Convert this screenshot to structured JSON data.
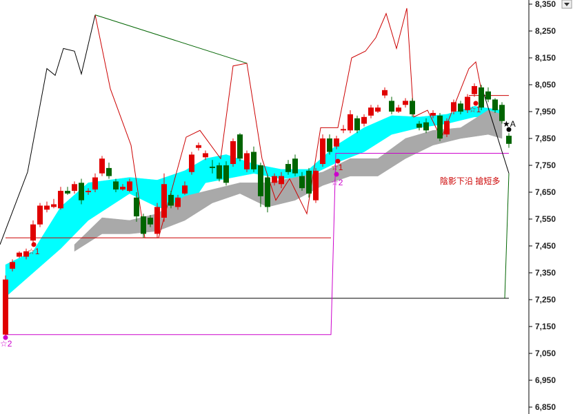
{
  "chart_data": {
    "type": "candlestick",
    "ylim": [
      6850,
      8350
    ],
    "yticks": [
      {
        "value": 6850,
        "label": "6,850"
      },
      {
        "value": 6950,
        "label": "6,950"
      },
      {
        "value": 7050,
        "label": "7,050"
      },
      {
        "value": 7150,
        "label": "7,150"
      },
      {
        "value": 7250,
        "label": "7,250"
      },
      {
        "value": 7350,
        "label": "7,350"
      },
      {
        "value": 7450,
        "label": "7,450"
      },
      {
        "value": 7550,
        "label": "7,550"
      },
      {
        "value": 7650,
        "label": "7,650"
      },
      {
        "value": 7750,
        "label": "7,750"
      },
      {
        "value": 7850,
        "label": "7,850"
      },
      {
        "value": 7950,
        "label": "7,950"
      },
      {
        "value": 8050,
        "label": "8,050"
      },
      {
        "value": 8150,
        "label": "8,150"
      },
      {
        "value": 8250,
        "label": "8,250"
      },
      {
        "value": 8350,
        "label": "8,350"
      }
    ],
    "up_color": "#e00000",
    "down_color": "#006400",
    "open": [
      7120,
      7365,
      7410,
      7410,
      7470,
      7530,
      7585,
      7595,
      7590,
      7655,
      7655,
      7685,
      7650,
      7660,
      7720,
      7740,
      7690,
      7660,
      7655,
      7630,
      7560,
      7555,
      7495,
      7555,
      7640,
      7595,
      7645,
      7725,
      7815,
      7780,
      7745,
      7750,
      7750,
      7755,
      7865,
      7735,
      7800,
      7750,
      7705,
      7685,
      7680,
      7755,
      7775,
      7710,
      7730,
      7620,
      7755,
      7850,
      7820,
      7880,
      7880,
      7925,
      7905,
      7935,
      7950,
      8010,
      7990,
      7950,
      7975,
      7990,
      7905,
      7910,
      7935,
      7935,
      7865,
      7950,
      7980,
      7955,
      8015,
      8040,
      8025,
      7995,
      7975,
      7860
    ],
    "close": [
      7325,
      7390,
      7425,
      7430,
      7530,
      7600,
      7600,
      7605,
      7655,
      7645,
      7680,
      7620,
      7655,
      7705,
      7775,
      7710,
      7660,
      7670,
      7690,
      7560,
      7495,
      7530,
      7595,
      7680,
      7600,
      7630,
      7675,
      7790,
      7825,
      7795,
      7740,
      7700,
      7685,
      7840,
      7775,
      7795,
      7735,
      7635,
      7595,
      7710,
      7710,
      7725,
      7720,
      7665,
      7645,
      7730,
      7850,
      7800,
      7850,
      7885,
      7940,
      7880,
      7930,
      7965,
      7965,
      8030,
      7950,
      7965,
      7990,
      7940,
      7890,
      7880,
      7945,
      7850,
      7915,
      7985,
      7950,
      8005,
      8045,
      7965,
      7995,
      7955,
      7915,
      7830
    ],
    "high": [
      7340,
      7400,
      7430,
      7440,
      7545,
      7610,
      7615,
      7625,
      7670,
      7670,
      7690,
      7700,
      7665,
      7720,
      7785,
      7760,
      7700,
      7680,
      7700,
      7650,
      7570,
      7565,
      7610,
      7720,
      7655,
      7640,
      7690,
      7800,
      7835,
      7805,
      7770,
      7760,
      7765,
      7850,
      7870,
      7805,
      7820,
      7760,
      7715,
      7720,
      7725,
      7770,
      7790,
      7725,
      7740,
      7740,
      7865,
      7865,
      7860,
      7900,
      7955,
      7935,
      7940,
      7975,
      7975,
      8040,
      8005,
      7975,
      8000,
      8000,
      7915,
      7925,
      7955,
      7945,
      7925,
      7995,
      7990,
      8015,
      8055,
      8050,
      8040,
      8000,
      7985,
      7870
    ],
    "low": [
      7100,
      7355,
      7405,
      7400,
      7460,
      7520,
      7575,
      7590,
      7585,
      7640,
      7645,
      7605,
      7640,
      7650,
      7710,
      7700,
      7650,
      7655,
      7650,
      7540,
      7480,
      7520,
      7480,
      7540,
      7590,
      7585,
      7640,
      7715,
      7805,
      7770,
      7720,
      7690,
      7675,
      7745,
      7765,
      7725,
      7725,
      7595,
      7575,
      7675,
      7665,
      7715,
      7710,
      7655,
      7630,
      7610,
      7745,
      7790,
      7810,
      7870,
      7870,
      7870,
      7895,
      7925,
      7945,
      8000,
      7940,
      7945,
      7965,
      7930,
      7880,
      7870,
      7925,
      7840,
      7855,
      7940,
      7940,
      7945,
      8005,
      7955,
      7985,
      7945,
      7905,
      7815
    ],
    "bands": [
      {
        "color": "#00ffff",
        "x": [
          0,
          4,
          8,
          12,
          15,
          18,
          22,
          26,
          29,
          32,
          36,
          40,
          44,
          48,
          52,
          56,
          60,
          64,
          68,
          72
        ],
        "upper": [
          7380,
          7430,
          7595,
          7685,
          7695,
          7705,
          7695,
          7730,
          7775,
          7790,
          7755,
          7735,
          7735,
          7825,
          7890,
          7935,
          7930,
          7940,
          7970,
          7955
        ],
        "lower": [
          7260,
          7350,
          7440,
          7545,
          7595,
          7645,
          7595,
          7570,
          7685,
          7700,
          7720,
          7700,
          7710,
          7760,
          7800,
          7865,
          7890,
          7905,
          7930,
          7930
        ]
      },
      {
        "color": "#a9a9a9",
        "x": [
          10,
          14,
          18,
          22,
          26,
          30,
          34,
          38,
          42,
          46,
          50,
          54,
          58,
          62,
          66,
          70,
          72
        ],
        "upper": [
          7455,
          7555,
          7545,
          7570,
          7635,
          7660,
          7685,
          7685,
          7705,
          7725,
          7775,
          7775,
          7850,
          7880,
          7890,
          7955,
          7940
        ],
        "lower": [
          7430,
          7495,
          7495,
          7505,
          7545,
          7610,
          7645,
          7595,
          7620,
          7675,
          7710,
          7710,
          7775,
          7825,
          7850,
          7865,
          7850
        ]
      }
    ],
    "lines": [
      {
        "color": "#000000",
        "x": [
          -0.8,
          3.2,
          6,
          7.2,
          8.4,
          10,
          11,
          13
        ],
        "values": [
          7455,
          7725,
          8110,
          8085,
          8185,
          8175,
          8090,
          8310
        ]
      },
      {
        "color": "#cc0000",
        "x": [
          13,
          15.2,
          18.2,
          20.2,
          22.2,
          26.2,
          28.2,
          31.2,
          33,
          35,
          37.2,
          39.2,
          41.2,
          43.7,
          45.7,
          48.2,
          50.2,
          52.2,
          53.7,
          55.2,
          56.7,
          58.2,
          59.2,
          61.2,
          63.2,
          65.2,
          67.2,
          68.2,
          69.2
        ],
        "values": [
          8310,
          8035,
          7825,
          7480,
          7480,
          7855,
          7880,
          7775,
          8120,
          8130,
          7775,
          7620,
          7700,
          7570,
          7890,
          7890,
          8150,
          8175,
          8225,
          8315,
          8185,
          8335,
          7930,
          7955,
          7850,
          7980,
          8110,
          8135,
          8005
        ]
      },
      {
        "color": "#006400",
        "x": [
          13,
          35
        ],
        "values": [
          8310,
          8130
        ]
      },
      {
        "color": "#cc0000",
        "x": [
          0,
          47.2
        ],
        "values": [
          7480,
          7480
        ]
      },
      {
        "color": "#cc0000",
        "x": [
          67.2,
          73
        ],
        "values": [
          8010,
          8010
        ]
      },
      {
        "color": "#000000",
        "x": [
          0,
          73
        ],
        "values": [
          7255,
          7255
        ]
      },
      {
        "color": "#cc00cc",
        "x": [
          0,
          47.2,
          47.9,
          73
        ],
        "values": [
          7120,
          7120,
          7795,
          7795
        ]
      },
      {
        "color": "#000000",
        "x": [
          69.2,
          73
        ],
        "values": [
          8030,
          7720
        ]
      },
      {
        "color": "#006400",
        "x": [
          73,
          72.4
        ],
        "values": [
          7720,
          7255
        ]
      }
    ],
    "annotations": [
      "陰影下沿  搶短多",
      "☆1",
      "☆2",
      "☆1",
      "☆2",
      "☆1",
      "★A"
    ]
  }
}
